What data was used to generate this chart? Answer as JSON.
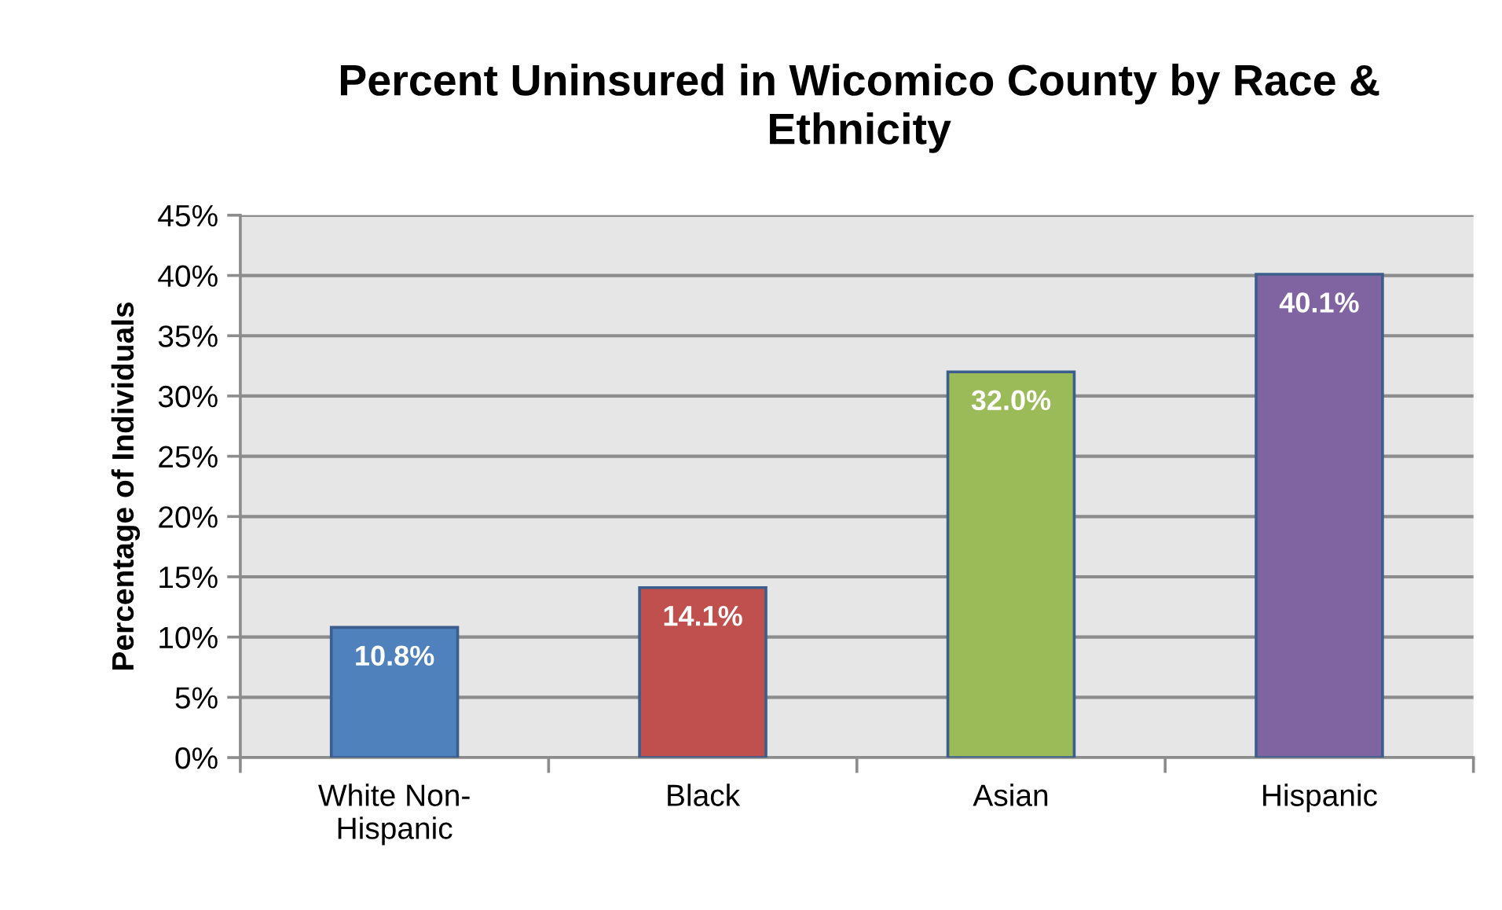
{
  "chart_data": {
    "type": "bar",
    "title": "Percent Uninsured in Wicomico County by Race & Ethnicity",
    "ylabel": "Percentage of Individuals",
    "categories": [
      "White Non-Hispanic",
      "Black",
      "Asian",
      "Hispanic"
    ],
    "values": [
      10.8,
      14.1,
      32.0,
      40.1
    ],
    "colors": [
      "#4f81bd",
      "#c0504d",
      "#9bbb59",
      "#8064a2"
    ],
    "value_labels": [
      "10.8%",
      "14.1%",
      "32.0%",
      "40.1%"
    ],
    "ylim": [
      0,
      45
    ],
    "yticks": [
      {
        "value": 0,
        "label": "0%"
      },
      {
        "value": 5,
        "label": "5%"
      },
      {
        "value": 10,
        "label": "10%"
      },
      {
        "value": 15,
        "label": "15%"
      },
      {
        "value": 20,
        "label": "20%"
      },
      {
        "value": 25,
        "label": "25%"
      },
      {
        "value": 30,
        "label": "30%"
      },
      {
        "value": 35,
        "label": "35%"
      },
      {
        "value": 40,
        "label": "40%"
      },
      {
        "value": 45,
        "label": "45%"
      }
    ],
    "grid": "y"
  }
}
